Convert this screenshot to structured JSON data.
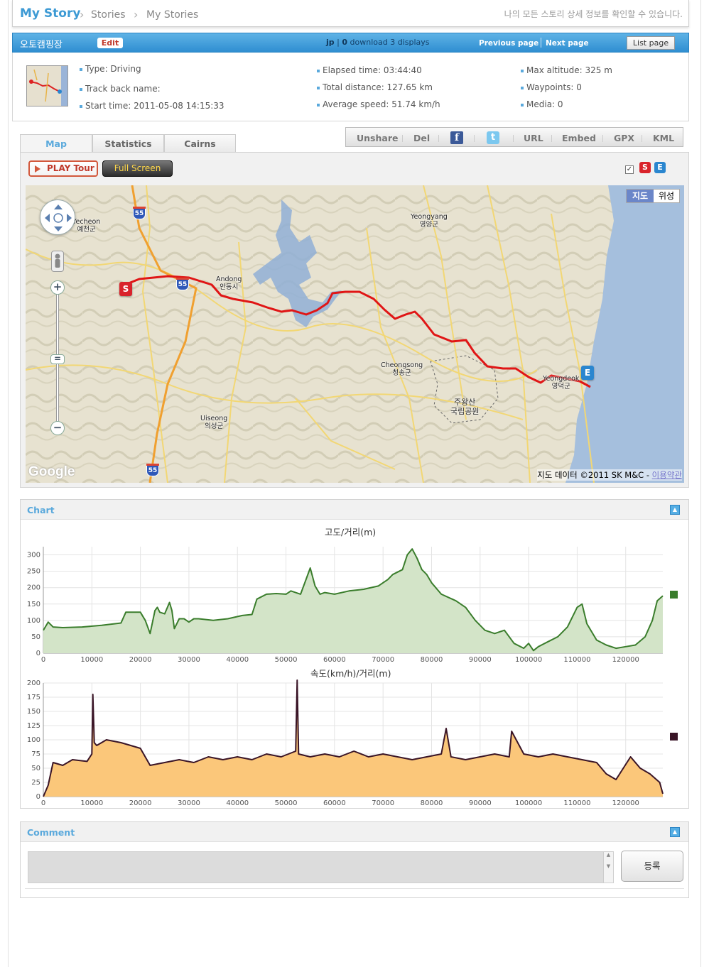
{
  "header": {
    "title": "My Story",
    "crumbs": [
      "Stories",
      "My Stories"
    ],
    "description": "나의 모든 스토리 상세 정보를 확인할 수 있습니다."
  },
  "story": {
    "name": "오토캠핑장",
    "edit_label": "Edit",
    "user": "jp",
    "downloads": "0",
    "download_label": "download",
    "displays": "3 displays",
    "prev_label": "Previous page",
    "next_label": "Next page",
    "list_label": "List page"
  },
  "info": {
    "type": "Type: Driving",
    "track_back": "Track back name:",
    "start_time": "Start time: 2011-05-08 14:15:33",
    "elapsed": "Elapsed time: 03:44:40",
    "distance": "Total distance: 127.65 km",
    "avg_speed": "Average speed: 51.74 km/h",
    "max_alt": "Max altitude: 325 m",
    "waypoints": "Waypoints: 0",
    "media": "Media: 0"
  },
  "tabs": [
    "Map",
    "Statistics",
    "Cairns"
  ],
  "actions": [
    "Unshare",
    "Del",
    "URL",
    "Embed",
    "GPX",
    "KML"
  ],
  "map": {
    "play_label": "PLAY Tour",
    "fullscreen_label": "Full Screen",
    "maptype": [
      "지도",
      "위성"
    ],
    "google": "Google",
    "copyright": "지도 데이터 ©2011 SK M&C - ",
    "terms": "이용약관",
    "labels": [
      {
        "en": "Yecheon",
        "ko": "예천군"
      },
      {
        "en": "Andong",
        "ko": "안동시"
      },
      {
        "en": "Yeongyang",
        "ko": "영양군"
      },
      {
        "en": "Cheongsong",
        "ko": "청송군"
      },
      {
        "en": "주왕산",
        "ko": "국립공원"
      },
      {
        "en": "Uiseong",
        "ko": "의성군"
      },
      {
        "en": "Yeongdeok",
        "ko": "영덕군"
      }
    ],
    "shields": [
      "55",
      "55",
      "55"
    ],
    "start_marker": "S",
    "end_marker": "E"
  },
  "chart": {
    "panel_title": "Chart",
    "alt_title": "고도/거리(m)",
    "speed_title": "속도(km/h)/거리(m)",
    "alt_color": "#3a7d2c",
    "speed_color": "#3a1527"
  },
  "chart_data": [
    {
      "type": "area",
      "title": "고도/거리(m)",
      "xlim": [
        0,
        127650
      ],
      "ylim": [
        0,
        325
      ],
      "x_ticks": [
        0,
        10000,
        20000,
        30000,
        40000,
        50000,
        60000,
        70000,
        80000,
        90000,
        100000,
        110000,
        120000
      ],
      "y_ticks": [
        0,
        50,
        100,
        150,
        200,
        250,
        300
      ],
      "grid": true,
      "series": [
        {
          "x": [
            0,
            1000,
            2000,
            4000,
            8000,
            12000,
            16000,
            17000,
            20000,
            21000,
            22000,
            23000,
            23500,
            24000,
            25000,
            26000,
            26500,
            27000,
            28000,
            29000,
            30000,
            31000,
            32000,
            35000,
            38000,
            41000,
            43000,
            44000,
            46000,
            48000,
            50000,
            51000,
            53000,
            54000,
            55000,
            56000,
            57000,
            58000,
            60000,
            63000,
            66000,
            69000,
            71000,
            72000,
            74000,
            75000,
            76000,
            77000,
            78000,
            79000,
            80000,
            82000,
            85000,
            87000,
            89000,
            91000,
            93000,
            95000,
            97000,
            99000,
            100000,
            101000,
            102000,
            104000,
            106000,
            108000,
            110000,
            111000,
            112000,
            114000,
            116000,
            118000,
            120000,
            122000,
            124000,
            125500,
            126500,
            127650
          ],
          "y": [
            70,
            95,
            80,
            78,
            80,
            85,
            92,
            125,
            125,
            100,
            60,
            130,
            140,
            125,
            120,
            155,
            130,
            75,
            105,
            105,
            95,
            105,
            105,
            100,
            105,
            115,
            118,
            165,
            180,
            182,
            180,
            190,
            180,
            220,
            260,
            205,
            180,
            185,
            180,
            190,
            195,
            205,
            225,
            240,
            255,
            300,
            318,
            290,
            255,
            240,
            215,
            180,
            160,
            140,
            100,
            70,
            60,
            70,
            30,
            15,
            30,
            8,
            20,
            35,
            50,
            80,
            140,
            150,
            90,
            40,
            25,
            15,
            20,
            25,
            50,
            100,
            160,
            175
          ]
        }
      ]
    },
    {
      "type": "area",
      "title": "속도(km/h)/거리(m)",
      "xlim": [
        0,
        127650
      ],
      "ylim": [
        0,
        200
      ],
      "x_ticks": [
        0,
        10000,
        20000,
        30000,
        40000,
        50000,
        60000,
        70000,
        80000,
        90000,
        100000,
        110000,
        120000
      ],
      "y_ticks": [
        0,
        25,
        50,
        75,
        100,
        125,
        150,
        175,
        200
      ],
      "grid": true,
      "series": [
        {
          "x": [
            0,
            1000,
            2000,
            4000,
            6000,
            9000,
            10000,
            10200,
            10500,
            11000,
            13000,
            16000,
            18000,
            20000,
            22000,
            25000,
            28000,
            31000,
            34000,
            37000,
            40000,
            43000,
            46000,
            49000,
            52000,
            52300,
            52600,
            55000,
            58000,
            61000,
            64000,
            67000,
            70000,
            73000,
            76000,
            79000,
            82000,
            83000,
            84000,
            87000,
            90000,
            93000,
            96000,
            96500,
            99000,
            102000,
            105000,
            108000,
            111000,
            114000,
            116000,
            118000,
            121000,
            123000,
            125000,
            127000,
            127650
          ],
          "y": [
            0,
            20,
            60,
            55,
            65,
            62,
            75,
            180,
            95,
            90,
            100,
            95,
            90,
            85,
            55,
            60,
            65,
            60,
            70,
            65,
            70,
            65,
            75,
            70,
            80,
            205,
            75,
            70,
            75,
            70,
            80,
            70,
            75,
            70,
            65,
            70,
            75,
            120,
            70,
            65,
            70,
            75,
            70,
            115,
            75,
            70,
            75,
            70,
            65,
            60,
            40,
            30,
            70,
            50,
            40,
            25,
            5
          ]
        }
      ]
    }
  ],
  "comment": {
    "panel_title": "Comment",
    "submit_label": "등록"
  }
}
